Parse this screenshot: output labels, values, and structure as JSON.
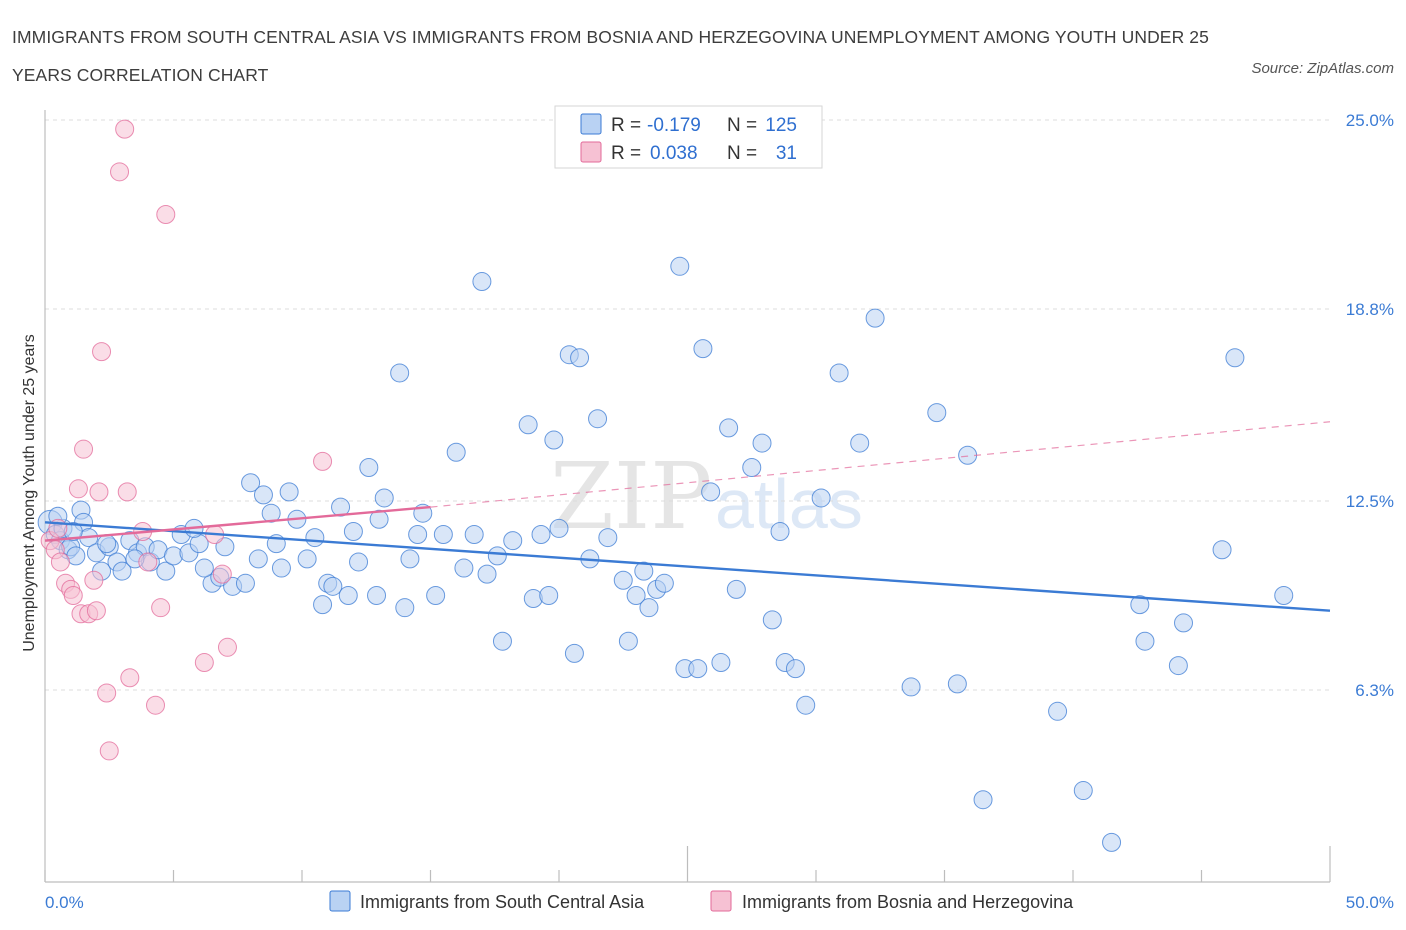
{
  "title": "IMMIGRANTS FROM SOUTH CENTRAL ASIA VS IMMIGRANTS FROM BOSNIA AND HERZEGOVINA UNEMPLOYMENT AMONG YOUTH UNDER 25 YEARS CORRELATION CHART",
  "source": "Source: ZipAtlas.com",
  "watermark": {
    "zip": "ZIP",
    "atlas": "atlas"
  },
  "colors": {
    "blue": "#3b7bd4",
    "blue_fill": "#b9d2f3",
    "pink": "#e36a9a",
    "pink_fill": "#f6c1d3"
  },
  "chart_data": {
    "type": "scatter",
    "xlabel": "",
    "ylabel": "Unemployment Among Youth under 25 years",
    "xlim": [
      0,
      50
    ],
    "ylim": [
      0,
      25.0
    ],
    "x_ticks": [
      "0.0%",
      "50.0%"
    ],
    "y_ticks": [
      {
        "v": 25.0,
        "label": "25.0%"
      },
      {
        "v": 18.8,
        "label": "18.8%"
      },
      {
        "v": 12.5,
        "label": "12.5%"
      },
      {
        "v": 6.3,
        "label": "6.3%"
      }
    ],
    "grid": true,
    "legend_top": [
      {
        "r_label": "R =",
        "r_value": "-0.179",
        "n_label": "N =",
        "n_value": "125"
      },
      {
        "r_label": "R =",
        "r_value": "0.038",
        "n_label": "N =",
        "n_value": "31"
      }
    ],
    "series": [
      {
        "name": "Immigrants from South Central Asia",
        "color": "blue",
        "trend": {
          "x": [
            0,
            50
          ],
          "y": [
            11.8,
            8.9
          ]
        },
        "points": [
          [
            0.2,
            11.8
          ],
          [
            0.4,
            11.4
          ],
          [
            0.6,
            11.2
          ],
          [
            0.7,
            11.6
          ],
          [
            0.9,
            10.9
          ],
          [
            1.0,
            11.0
          ],
          [
            1.2,
            10.7
          ],
          [
            1.4,
            12.2
          ],
          [
            1.5,
            11.8
          ],
          [
            1.7,
            11.3
          ],
          [
            2.0,
            10.8
          ],
          [
            2.2,
            10.2
          ],
          [
            2.5,
            11.0
          ],
          [
            2.8,
            10.5
          ],
          [
            3.0,
            10.2
          ],
          [
            3.3,
            11.2
          ],
          [
            3.6,
            10.8
          ],
          [
            3.9,
            11.0
          ],
          [
            4.1,
            10.5
          ],
          [
            4.4,
            10.9
          ],
          [
            4.7,
            10.2
          ],
          [
            5.0,
            10.7
          ],
          [
            5.3,
            11.4
          ],
          [
            5.6,
            10.8
          ],
          [
            6.0,
            11.1
          ],
          [
            6.5,
            9.8
          ],
          [
            6.8,
            10.0
          ],
          [
            7.0,
            11.0
          ],
          [
            7.3,
            9.7
          ],
          [
            7.8,
            9.8
          ],
          [
            8.0,
            13.1
          ],
          [
            8.3,
            10.6
          ],
          [
            8.5,
            12.7
          ],
          [
            8.8,
            12.1
          ],
          [
            9.2,
            10.3
          ],
          [
            9.5,
            12.8
          ],
          [
            9.8,
            11.9
          ],
          [
            10.2,
            10.6
          ],
          [
            10.5,
            11.3
          ],
          [
            10.8,
            9.1
          ],
          [
            11.0,
            9.8
          ],
          [
            11.2,
            9.7
          ],
          [
            11.5,
            12.3
          ],
          [
            11.8,
            9.4
          ],
          [
            12.2,
            10.5
          ],
          [
            12.6,
            13.6
          ],
          [
            12.9,
            9.4
          ],
          [
            13.2,
            12.6
          ],
          [
            13.8,
            16.7
          ],
          [
            14.0,
            9.0
          ],
          [
            14.2,
            10.6
          ],
          [
            14.5,
            11.4
          ],
          [
            14.7,
            12.1
          ],
          [
            15.2,
            9.4
          ],
          [
            15.5,
            11.4
          ],
          [
            16.0,
            14.1
          ],
          [
            16.3,
            10.3
          ],
          [
            16.7,
            11.4
          ],
          [
            17.0,
            19.7
          ],
          [
            17.2,
            10.1
          ],
          [
            17.6,
            10.7
          ],
          [
            17.8,
            7.9
          ],
          [
            18.2,
            11.2
          ],
          [
            18.8,
            15.0
          ],
          [
            19.0,
            9.3
          ],
          [
            19.3,
            11.4
          ],
          [
            19.6,
            9.4
          ],
          [
            19.8,
            14.5
          ],
          [
            20.0,
            11.6
          ],
          [
            20.4,
            17.3
          ],
          [
            20.6,
            7.5
          ],
          [
            20.8,
            17.2
          ],
          [
            21.2,
            10.6
          ],
          [
            21.5,
            15.2
          ],
          [
            21.9,
            11.3
          ],
          [
            22.5,
            9.9
          ],
          [
            22.7,
            7.9
          ],
          [
            23.0,
            9.4
          ],
          [
            23.3,
            10.2
          ],
          [
            23.5,
            9.0
          ],
          [
            23.8,
            9.6
          ],
          [
            24.1,
            9.8
          ],
          [
            24.7,
            20.2
          ],
          [
            24.9,
            7.0
          ],
          [
            25.4,
            7.0
          ],
          [
            25.6,
            17.5
          ],
          [
            25.9,
            12.8
          ],
          [
            26.3,
            7.2
          ],
          [
            26.6,
            14.9
          ],
          [
            26.9,
            9.6
          ],
          [
            27.5,
            13.6
          ],
          [
            27.9,
            14.4
          ],
          [
            28.3,
            8.6
          ],
          [
            28.6,
            11.5
          ],
          [
            28.8,
            7.2
          ],
          [
            29.2,
            7.0
          ],
          [
            29.6,
            5.8
          ],
          [
            30.2,
            12.6
          ],
          [
            30.9,
            16.7
          ],
          [
            31.7,
            14.4
          ],
          [
            32.3,
            18.5
          ],
          [
            33.7,
            6.4
          ],
          [
            34.7,
            15.4
          ],
          [
            35.5,
            6.5
          ],
          [
            35.9,
            14.0
          ],
          [
            36.5,
            2.7
          ],
          [
            39.4,
            5.6
          ],
          [
            40.4,
            3.0
          ],
          [
            41.5,
            1.3
          ],
          [
            42.6,
            9.1
          ],
          [
            42.8,
            7.9
          ],
          [
            44.1,
            7.1
          ],
          [
            44.3,
            8.5
          ],
          [
            45.8,
            10.9
          ],
          [
            46.3,
            17.2
          ],
          [
            48.2,
            9.4
          ],
          [
            0.5,
            12.0
          ],
          [
            1.1,
            11.5
          ],
          [
            2.4,
            11.1
          ],
          [
            3.5,
            10.6
          ],
          [
            5.8,
            11.6
          ],
          [
            6.2,
            10.3
          ],
          [
            9.0,
            11.1
          ],
          [
            12.0,
            11.5
          ],
          [
            13.0,
            11.9
          ]
        ]
      },
      {
        "name": "Immigrants from Bosnia and Herzegovina",
        "color": "pink",
        "trend": {
          "x": [
            0,
            15
          ],
          "y": [
            11.2,
            12.3
          ]
        },
        "trend_ext": {
          "x": [
            15,
            50
          ],
          "y": [
            12.3,
            15.1
          ]
        },
        "points": [
          [
            0.2,
            11.2
          ],
          [
            0.4,
            10.9
          ],
          [
            0.5,
            11.6
          ],
          [
            0.6,
            10.5
          ],
          [
            0.8,
            9.8
          ],
          [
            1.0,
            9.6
          ],
          [
            1.1,
            9.4
          ],
          [
            1.3,
            12.9
          ],
          [
            1.4,
            8.8
          ],
          [
            1.5,
            14.2
          ],
          [
            1.7,
            8.8
          ],
          [
            1.9,
            9.9
          ],
          [
            2.0,
            8.9
          ],
          [
            2.1,
            12.8
          ],
          [
            2.2,
            17.4
          ],
          [
            2.4,
            6.2
          ],
          [
            2.5,
            4.3
          ],
          [
            2.9,
            23.3
          ],
          [
            3.1,
            24.7
          ],
          [
            3.2,
            12.8
          ],
          [
            3.3,
            6.7
          ],
          [
            3.8,
            11.5
          ],
          [
            4.0,
            10.5
          ],
          [
            4.3,
            5.8
          ],
          [
            4.5,
            9.0
          ],
          [
            4.7,
            21.9
          ],
          [
            6.2,
            7.2
          ],
          [
            6.6,
            11.4
          ],
          [
            6.9,
            10.1
          ],
          [
            7.1,
            7.7
          ],
          [
            10.8,
            13.8
          ]
        ]
      }
    ]
  },
  "legend_bottom": [
    "Immigrants from South Central Asia",
    "Immigrants from Bosnia and Herzegovina"
  ]
}
